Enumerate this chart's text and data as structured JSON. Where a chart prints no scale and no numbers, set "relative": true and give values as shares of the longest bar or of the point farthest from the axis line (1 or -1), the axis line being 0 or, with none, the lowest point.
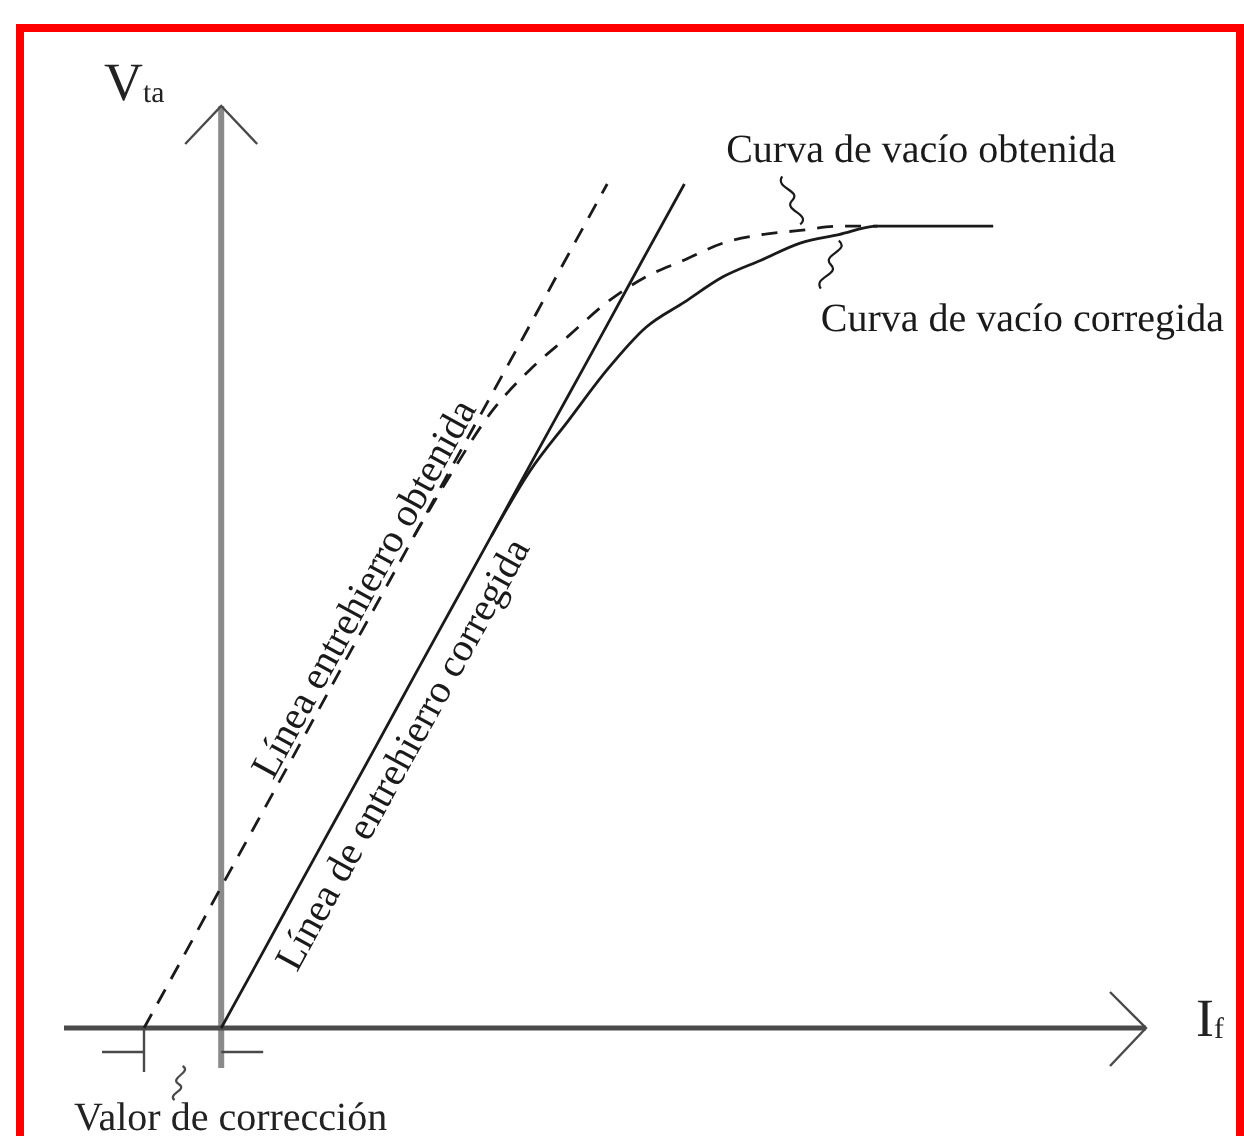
{
  "chart_data": {
    "type": "line",
    "relative": true,
    "xlabel": "I$_{f}$",
    "ylabel": "V$_{ta}$",
    "categories": [
      null,
      null,
      null,
      null,
      null,
      null,
      null,
      null,
      null,
      null,
      null,
      null,
      null,
      null,
      null,
      null,
      null,
      null,
      null,
      null,
      null,
      null,
      null
    ],
    "series": [
      {
        "name": "Línea entrehierro obtenida",
        "color": "#1a1a1a",
        "line_style": "dashed",
        "values": [
          0,
          0.083,
          0.167,
          0.25,
          0.333,
          0.417,
          0.5,
          0.583,
          0.667,
          0.75,
          0.833,
          0.917,
          1,
          null,
          null,
          null,
          null,
          null,
          null,
          null,
          null,
          null,
          null
        ]
      },
      {
        "name": "Línea de entrehierro corregida",
        "color": "#1a1a1a",
        "line_style": "solid",
        "values": [
          null,
          null,
          0,
          0.083,
          0.167,
          0.25,
          0.333,
          0.417,
          0.5,
          0.583,
          0.667,
          0.75,
          0.833,
          0.917,
          1,
          null,
          null,
          null,
          null,
          null,
          null,
          null,
          null
        ]
      },
      {
        "name": "Curva de vacío obtenida",
        "color": "#1a1a1a",
        "line_style": "dashed",
        "values": [
          null,
          null,
          null,
          null,
          null,
          null,
          null,
          0.583,
          0.66,
          0.73,
          0.78,
          0.82,
          0.86,
          0.89,
          0.91,
          0.93,
          0.94,
          0.945,
          0.95,
          0.95,
          null,
          null,
          null
        ]
      },
      {
        "name": "Curva de vacío corregida",
        "color": "#1a1a1a",
        "line_style": "solid",
        "values": [
          null,
          null,
          null,
          null,
          null,
          null,
          null,
          null,
          null,
          0.583,
          0.66,
          0.72,
          0.78,
          0.83,
          0.86,
          0.89,
          0.91,
          0.93,
          0.94,
          0.95,
          0.95,
          0.95,
          0.95
        ]
      }
    ],
    "annotations": [
      "Valor de corrección"
    ]
  }
}
